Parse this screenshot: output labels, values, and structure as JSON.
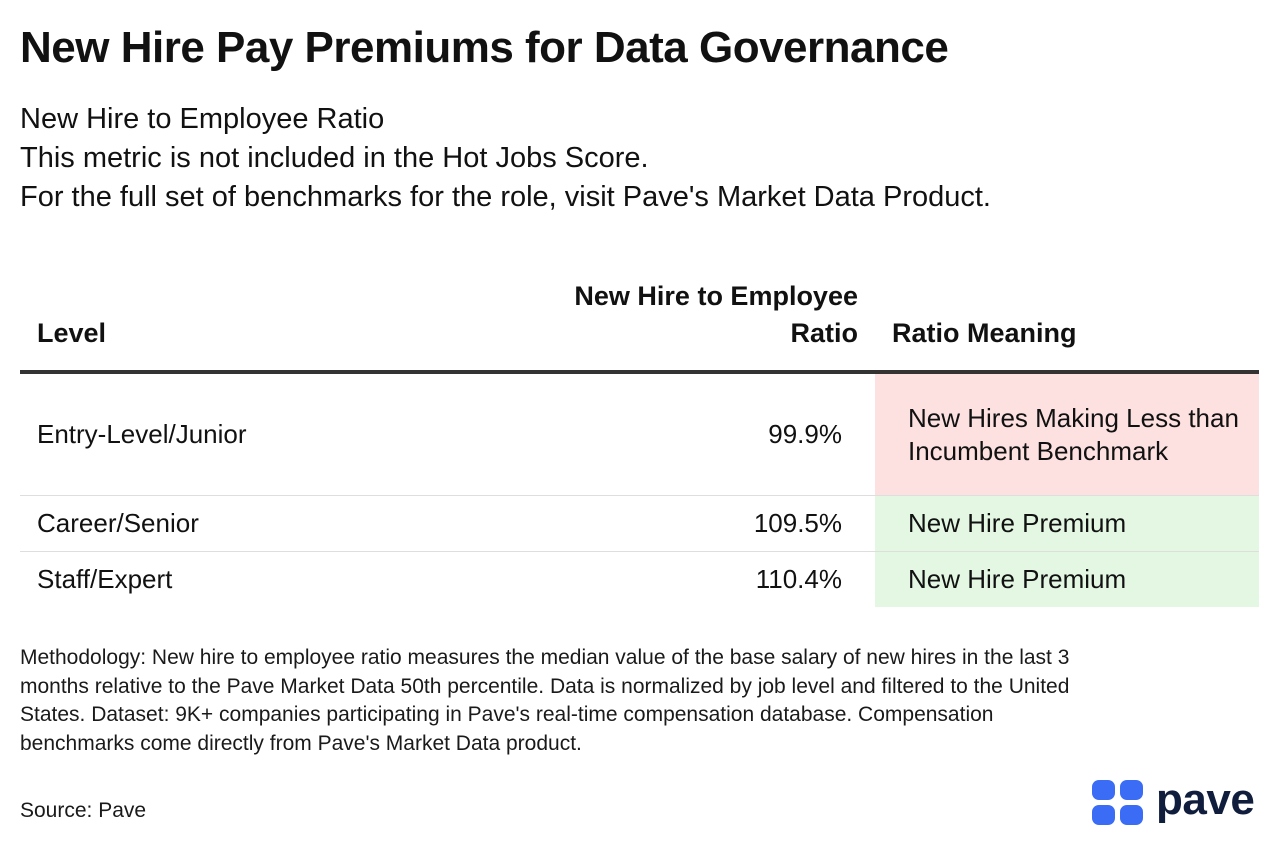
{
  "page": {
    "title": "New Hire Pay Premiums for Data Governance",
    "subtitle_lines": [
      "New Hire to Employee Ratio",
      "This metric is not included in the Hot Jobs Score.",
      "For the full set of benchmarks for the role, visit Pave's Market Data Product."
    ]
  },
  "chart_data": {
    "type": "table",
    "columns": [
      "Level",
      "New Hire to Employee Ratio",
      "Ratio Meaning"
    ],
    "rows": [
      {
        "level": "Entry-Level/Junior",
        "ratio": "99.9%",
        "meaning": "New Hires Making Less than Incumbent Benchmark",
        "meaning_color": "#fde0e0"
      },
      {
        "level": "Career/Senior",
        "ratio": "109.5%",
        "meaning": "New Hire Premium",
        "meaning_color": "#e3f7e3"
      },
      {
        "level": "Staff/Expert",
        "ratio": "110.4%",
        "meaning": "New Hire Premium",
        "meaning_color": "#e3f7e3"
      }
    ]
  },
  "footer": {
    "methodology": "Methodology: New hire to employee ratio measures the median value of the base salary of new hires in the last 3 months relative to the Pave Market Data 50th percentile. Data is normalized by job level and filtered to the United States. Dataset: 9K+ companies participating in Pave's real-time compensation database. Compensation benchmarks come directly from Pave's Market Data product.",
    "source": "Source: Pave"
  },
  "logo": {
    "text": "pave",
    "icon": "pave-logo-icon",
    "mark_color": "#3b6cf6",
    "text_color": "#101d3c"
  }
}
